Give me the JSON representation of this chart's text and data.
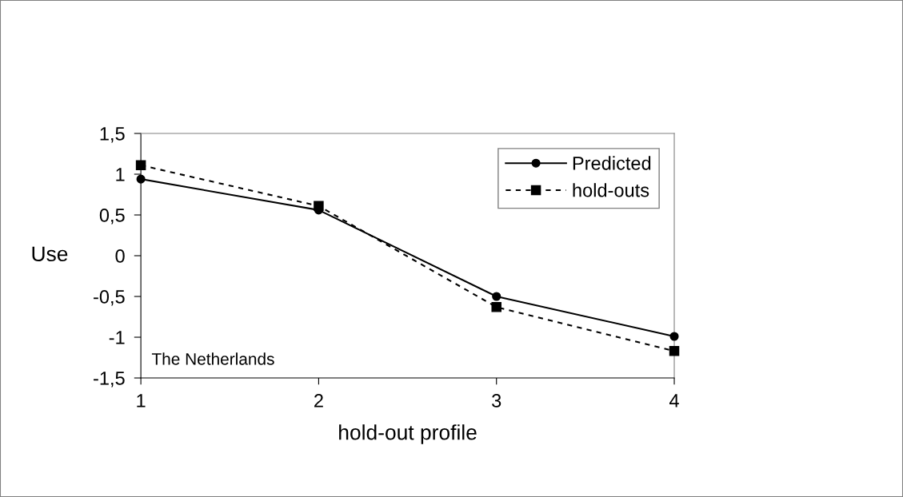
{
  "chart_data": {
    "type": "line",
    "xlabel": "hold-out profile",
    "ylabel": "Use",
    "x": [
      1,
      2,
      3,
      4
    ],
    "series": [
      {
        "name": "Predicted",
        "color": "#000000",
        "values": [
          0.94,
          0.56,
          -0.5,
          -0.99
        ],
        "marker": "circle",
        "line_style": "solid"
      },
      {
        "name": "hold-outs",
        "color": "#000000",
        "values": [
          1.11,
          0.61,
          -0.63,
          -1.17
        ],
        "marker": "square",
        "line_style": "dashed"
      }
    ],
    "xlim": [
      1,
      4
    ],
    "xticks": [
      1,
      2,
      3,
      4
    ],
    "ylim": [
      -1.5,
      1.5
    ],
    "yticks": [
      {
        "value": -1.5,
        "label": "-1,5"
      },
      {
        "value": -1,
        "label": "-1"
      },
      {
        "value": -0.5,
        "label": "-0,5"
      },
      {
        "value": 0,
        "label": "0"
      },
      {
        "value": 0.5,
        "label": "0,5"
      },
      {
        "value": 1,
        "label": "1"
      },
      {
        "value": 1.5,
        "label": "1,5"
      }
    ],
    "annotations": [
      "The Netherlands"
    ],
    "grid": false,
    "legend": "top right"
  }
}
